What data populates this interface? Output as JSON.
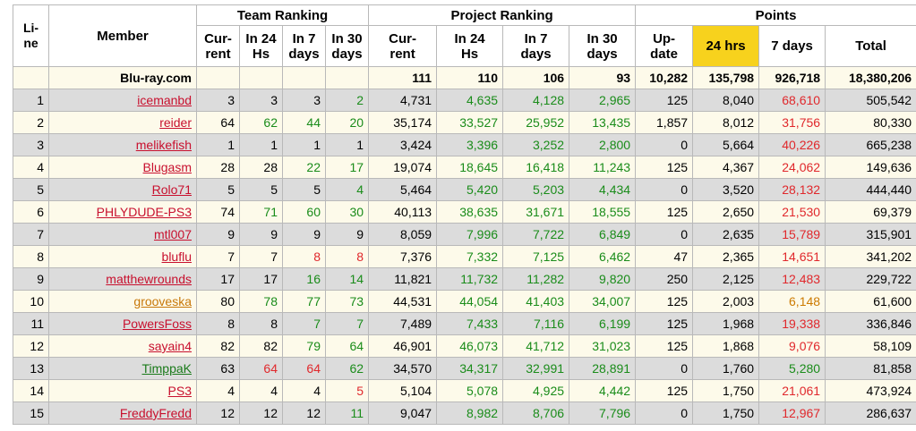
{
  "headers": {
    "line": "Li-ne",
    "member": "Member",
    "team_ranking": "Team Ranking",
    "project_ranking": "Project Ranking",
    "points": "Points",
    "team_cols": [
      "Cur-rent",
      "In 24 Hs",
      "In 7 days",
      "In 30 days"
    ],
    "project_cols": [
      "Cur-rent",
      "In 24 Hs",
      "In 7 days",
      "In 30 days"
    ],
    "points_cols": [
      "Up-date",
      "24 hrs",
      "7 days",
      "Total"
    ]
  },
  "team_row": {
    "name": "Blu-ray.com",
    "proj_current": "111",
    "proj_24": "110",
    "proj_7": "106",
    "proj_30": "93",
    "update": "10,282",
    "pts_24": "135,798",
    "pts_7": "926,718",
    "total": "18,380,206"
  },
  "colors": {
    "green": "#1a8c1a",
    "red": "#e0282c",
    "orange": "#cc7a00",
    "highlight": "#f7d21d",
    "row_odd": "#dcdcdc",
    "row_even": "#fdfaea"
  },
  "rows": [
    {
      "line": "1",
      "member": "icemanbd",
      "mc": "red",
      "t_cur": "3",
      "t_24": "3",
      "t_24c": "black",
      "t_7": "3",
      "t_7c": "black",
      "t_30": "2",
      "t_30c": "green",
      "p_cur": "4,731",
      "p_24": "4,635",
      "p_7": "4,128",
      "p_30": "2,965",
      "update": "125",
      "pts_24": "8,040",
      "pts_7": "68,610",
      "pts_7c": "red",
      "total": "505,542"
    },
    {
      "line": "2",
      "member": "reider",
      "mc": "red",
      "t_cur": "64",
      "t_24": "62",
      "t_24c": "green",
      "t_7": "44",
      "t_7c": "green",
      "t_30": "20",
      "t_30c": "green",
      "p_cur": "35,174",
      "p_24": "33,527",
      "p_7": "25,952",
      "p_30": "13,435",
      "update": "1,857",
      "pts_24": "8,012",
      "pts_7": "31,756",
      "pts_7c": "red",
      "total": "80,330"
    },
    {
      "line": "3",
      "member": "melikefish",
      "mc": "red",
      "t_cur": "1",
      "t_24": "1",
      "t_24c": "black",
      "t_7": "1",
      "t_7c": "black",
      "t_30": "1",
      "t_30c": "black",
      "p_cur": "3,424",
      "p_24": "3,396",
      "p_7": "3,252",
      "p_30": "2,800",
      "update": "0",
      "pts_24": "5,664",
      "pts_7": "40,226",
      "pts_7c": "red",
      "total": "665,238"
    },
    {
      "line": "4",
      "member": "Blugasm",
      "mc": "red",
      "t_cur": "28",
      "t_24": "28",
      "t_24c": "black",
      "t_7": "22",
      "t_7c": "green",
      "t_30": "17",
      "t_30c": "green",
      "p_cur": "19,074",
      "p_24": "18,645",
      "p_7": "16,418",
      "p_30": "11,243",
      "update": "125",
      "pts_24": "4,367",
      "pts_7": "24,062",
      "pts_7c": "red",
      "total": "149,636"
    },
    {
      "line": "5",
      "member": "Rolo71",
      "mc": "red",
      "t_cur": "5",
      "t_24": "5",
      "t_24c": "black",
      "t_7": "5",
      "t_7c": "black",
      "t_30": "4",
      "t_30c": "green",
      "p_cur": "5,464",
      "p_24": "5,420",
      "p_7": "5,203",
      "p_30": "4,434",
      "update": "0",
      "pts_24": "3,520",
      "pts_7": "28,132",
      "pts_7c": "red",
      "total": "444,440"
    },
    {
      "line": "6",
      "member": "PHLYDUDE-PS3",
      "mc": "red",
      "t_cur": "74",
      "t_24": "71",
      "t_24c": "green",
      "t_7": "60",
      "t_7c": "green",
      "t_30": "30",
      "t_30c": "green",
      "p_cur": "40,113",
      "p_24": "38,635",
      "p_7": "31,671",
      "p_30": "18,555",
      "update": "125",
      "pts_24": "2,650",
      "pts_7": "21,530",
      "pts_7c": "red",
      "total": "69,379"
    },
    {
      "line": "7",
      "member": "mtl007",
      "mc": "red",
      "t_cur": "9",
      "t_24": "9",
      "t_24c": "black",
      "t_7": "9",
      "t_7c": "black",
      "t_30": "9",
      "t_30c": "black",
      "p_cur": "8,059",
      "p_24": "7,996",
      "p_7": "7,722",
      "p_30": "6,849",
      "update": "0",
      "pts_24": "2,635",
      "pts_7": "15,789",
      "pts_7c": "red",
      "total": "315,901"
    },
    {
      "line": "8",
      "member": "bluflu",
      "mc": "red",
      "t_cur": "7",
      "t_24": "7",
      "t_24c": "black",
      "t_7": "8",
      "t_7c": "red",
      "t_30": "8",
      "t_30c": "red",
      "p_cur": "7,376",
      "p_24": "7,332",
      "p_7": "7,125",
      "p_30": "6,462",
      "update": "47",
      "pts_24": "2,365",
      "pts_7": "14,651",
      "pts_7c": "red",
      "total": "341,202"
    },
    {
      "line": "9",
      "member": "matthewrounds",
      "mc": "red",
      "t_cur": "17",
      "t_24": "17",
      "t_24c": "black",
      "t_7": "16",
      "t_7c": "green",
      "t_30": "14",
      "t_30c": "green",
      "p_cur": "11,821",
      "p_24": "11,732",
      "p_7": "11,282",
      "p_30": "9,820",
      "update": "250",
      "pts_24": "2,125",
      "pts_7": "12,483",
      "pts_7c": "red",
      "total": "229,722"
    },
    {
      "line": "10",
      "member": "grooveska",
      "mc": "orange",
      "t_cur": "80",
      "t_24": "78",
      "t_24c": "green",
      "t_7": "77",
      "t_7c": "green",
      "t_30": "73",
      "t_30c": "green",
      "p_cur": "44,531",
      "p_24": "44,054",
      "p_7": "41,403",
      "p_30": "34,007",
      "update": "125",
      "pts_24": "2,003",
      "pts_7": "6,148",
      "pts_7c": "orange",
      "total": "61,600"
    },
    {
      "line": "11",
      "member": "PowersFoss",
      "mc": "red",
      "t_cur": "8",
      "t_24": "8",
      "t_24c": "black",
      "t_7": "7",
      "t_7c": "green",
      "t_30": "7",
      "t_30c": "green",
      "p_cur": "7,489",
      "p_24": "7,433",
      "p_7": "7,116",
      "p_30": "6,199",
      "update": "125",
      "pts_24": "1,968",
      "pts_7": "19,338",
      "pts_7c": "red",
      "total": "336,846"
    },
    {
      "line": "12",
      "member": "sayain4",
      "mc": "red",
      "t_cur": "82",
      "t_24": "82",
      "t_24c": "black",
      "t_7": "79",
      "t_7c": "green",
      "t_30": "64",
      "t_30c": "green",
      "p_cur": "46,901",
      "p_24": "46,073",
      "p_7": "41,712",
      "p_30": "31,023",
      "update": "125",
      "pts_24": "1,868",
      "pts_7": "9,076",
      "pts_7c": "red",
      "total": "58,109"
    },
    {
      "line": "13",
      "member": "TimppaK",
      "mc": "green",
      "t_cur": "63",
      "t_24": "64",
      "t_24c": "red",
      "t_7": "64",
      "t_7c": "red",
      "t_30": "62",
      "t_30c": "green",
      "p_cur": "34,570",
      "p_24": "34,317",
      "p_7": "32,991",
      "p_30": "28,891",
      "update": "0",
      "pts_24": "1,760",
      "pts_7": "5,280",
      "pts_7c": "green",
      "total": "81,858"
    },
    {
      "line": "14",
      "member": "PS3",
      "mc": "red",
      "t_cur": "4",
      "t_24": "4",
      "t_24c": "black",
      "t_7": "4",
      "t_7c": "black",
      "t_30": "5",
      "t_30c": "red",
      "p_cur": "5,104",
      "p_24": "5,078",
      "p_7": "4,925",
      "p_30": "4,442",
      "update": "125",
      "pts_24": "1,750",
      "pts_7": "21,061",
      "pts_7c": "red",
      "total": "473,924"
    },
    {
      "line": "15",
      "member": "FreddyFredd",
      "mc": "red",
      "t_cur": "12",
      "t_24": "12",
      "t_24c": "black",
      "t_7": "12",
      "t_7c": "black",
      "t_30": "11",
      "t_30c": "green",
      "p_cur": "9,047",
      "p_24": "8,982",
      "p_7": "8,706",
      "p_30": "7,796",
      "update": "0",
      "pts_24": "1,750",
      "pts_7": "12,967",
      "pts_7c": "red",
      "total": "286,637"
    }
  ]
}
